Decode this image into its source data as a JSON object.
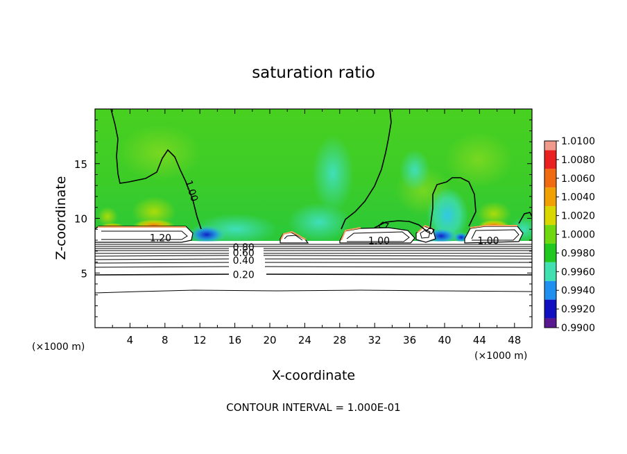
{
  "chart_data": {
    "type": "heatmap",
    "title": "saturation ratio",
    "xlabel": "X-coordinate",
    "ylabel": "Z-coordinate",
    "x_unit_left": "(×1000 m)",
    "x_unit_right": "(×1000 m)",
    "footer": "CONTOUR INTERVAL = 1.000E-01",
    "xlim": [
      0,
      50
    ],
    "ylim": [
      0,
      20
    ],
    "x_ticks": [
      4,
      8,
      12,
      16,
      20,
      24,
      28,
      32,
      36,
      40,
      44,
      48
    ],
    "y_ticks": [
      5,
      10,
      15
    ],
    "colorbar": {
      "levels": [
        "1.0100",
        "1.0080",
        "1.0060",
        "1.0040",
        "1.0020",
        "1.0000",
        "0.9980",
        "0.9960",
        "0.9940",
        "0.9920",
        "0.9900"
      ],
      "colors": [
        "#f09a8c",
        "#e82020",
        "#f06a10",
        "#f0a000",
        "#d8d800",
        "#70d810",
        "#20c820",
        "#40e0b0",
        "#2090f0",
        "#1010c0",
        "#5a1890"
      ]
    },
    "contour_labels": [
      {
        "text": "1.00",
        "x": 11.0,
        "z": 12.5,
        "rotate": 72
      },
      {
        "text": "1.20",
        "x": 7.5,
        "z": 8.15,
        "rotate": 0
      },
      {
        "text": "0.80",
        "x": 17.0,
        "z": 7.3,
        "rotate": 0
      },
      {
        "text": "0.60",
        "x": 17.0,
        "z": 6.8,
        "rotate": 0
      },
      {
        "text": "0.40",
        "x": 17.0,
        "z": 6.1,
        "rotate": 0
      },
      {
        "text": "0.20",
        "x": 17.0,
        "z": 4.8,
        "rotate": 0
      },
      {
        "text": "1.00",
        "x": 32.5,
        "z": 7.9,
        "rotate": 0
      },
      {
        "text": "1.00",
        "x": 45.0,
        "z": 7.9,
        "rotate": 0
      }
    ]
  }
}
